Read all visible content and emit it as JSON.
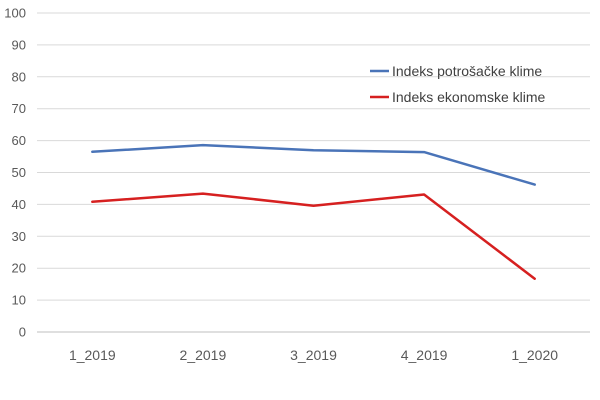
{
  "chart_data": {
    "type": "line",
    "categories": [
      "1_2019",
      "2_2019",
      "3_2019",
      "4_2019",
      "1_2020"
    ],
    "series": [
      {
        "name": "Indeks potrošačke klime",
        "color": "#4a74b8",
        "values": [
          56.5,
          58.6,
          57.0,
          56.4,
          46.2
        ]
      },
      {
        "name": "Indeks ekonomske klime",
        "color": "#d62020",
        "values": [
          40.8,
          43.4,
          39.6,
          43.1,
          16.7
        ]
      }
    ],
    "ylim": [
      0,
      100
    ],
    "yticks": [
      "0",
      "10",
      "20",
      "30",
      "40",
      "50",
      "60",
      "70",
      "80",
      "90",
      "100"
    ],
    "grid": true,
    "legend_position": "top-right"
  }
}
